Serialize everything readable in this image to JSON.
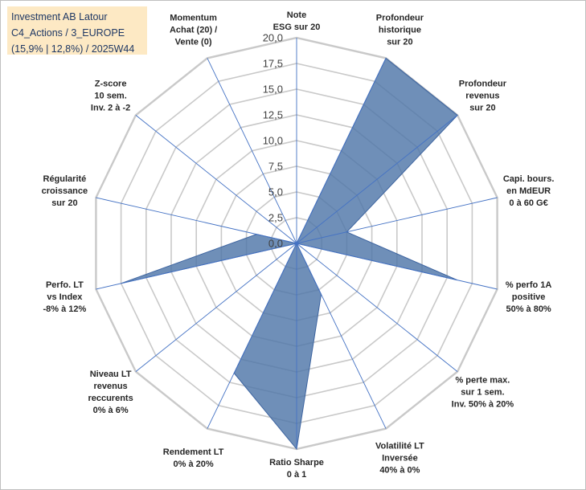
{
  "info": {
    "line1": "Investment AB Latour",
    "line2": "C4_Actions / 3_EUROPE",
    "line3": "(15,9% | 12,8%) / 2025W44"
  },
  "chart_data": {
    "type": "radar",
    "title": "",
    "rmax": 20,
    "rings": 8,
    "ticks": [
      "0,0",
      "2,5",
      "5,0",
      "7,5",
      "10,0",
      "12,5",
      "15,0",
      "17,5",
      "20,0"
    ],
    "axes": [
      [
        "Note",
        "ESG sur 20"
      ],
      [
        "Profondeur",
        "historique",
        "sur 20"
      ],
      [
        "Profondeur",
        "revenus",
        "sur 20"
      ],
      [
        "Capi. bours.",
        "en MdEUR",
        "0 à 60 G€"
      ],
      [
        "% perfo 1A",
        "positive",
        "50% à 80%"
      ],
      [
        "% perte max.",
        "sur 1 sem.",
        "Inv. 50% à 20%"
      ],
      [
        "Volatilité LT",
        "Inversée",
        "40% à 0%"
      ],
      [
        "Ratio Sharpe",
        "0 à 1"
      ],
      [
        "Rendement LT",
        "0% à 20%"
      ],
      [
        "Niveau LT",
        "revenus",
        "reccurents",
        "0% à 6%"
      ],
      [
        "Perfo. LT",
        "vs Index",
        "-8% à 12%"
      ],
      [
        "Régularité",
        "croissance",
        "sur 20"
      ],
      [
        "Z-score",
        "10 sem.",
        "Inv. 2 à -2"
      ],
      [
        "Momentum",
        "Achat (20) /",
        "Vente (0)"
      ]
    ],
    "series": [
      {
        "name": "Investment AB Latour",
        "values": [
          0,
          20,
          20,
          5,
          16,
          0,
          5.5,
          20,
          14,
          0,
          17.5,
          4,
          0,
          0
        ],
        "color": "#4f76a8"
      }
    ]
  }
}
